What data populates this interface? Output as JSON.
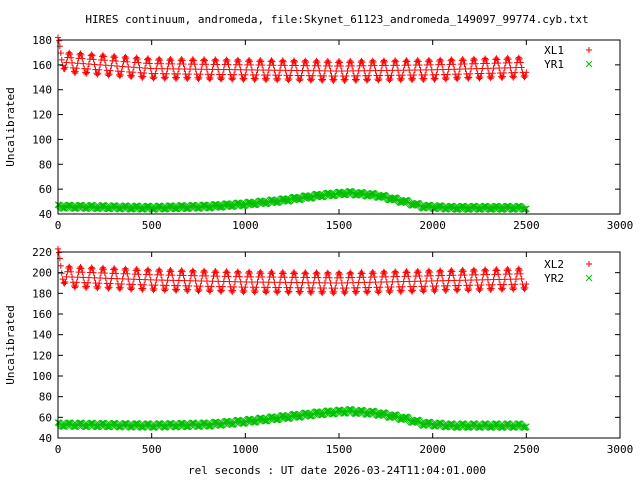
{
  "title": "HIRES continuum, andromeda, file:Skynet_61123_andromeda_149097_99774.cyb.txt",
  "xlabel": "rel seconds : UT date 2026-03-24T11:04:01.000",
  "chart_data": [
    {
      "type": "scatter",
      "ylabel": "Uncalibrated",
      "xlim": [
        0,
        3000
      ],
      "ylim": [
        40,
        180
      ],
      "xticks": [
        0,
        500,
        1000,
        1500,
        2000,
        2500,
        3000
      ],
      "yticks": [
        40,
        60,
        80,
        100,
        120,
        140,
        160,
        180
      ],
      "legend": "top-right",
      "grid": false,
      "series": [
        {
          "name": "XL1",
          "marker": "plus",
          "color": "#ff0000",
          "x_range": [
            0,
            2500
          ],
          "step": 5,
          "keypoints": [
            [
              0,
              176
            ],
            [
              40,
              164
            ],
            [
              500,
              159
            ],
            [
              1000,
              158
            ],
            [
              1500,
              157
            ],
            [
              2000,
              158
            ],
            [
              2500,
              160
            ]
          ],
          "oscillation": {
            "period": 60,
            "low": -10,
            "high": 6
          }
        },
        {
          "name": "YR1",
          "marker": "cross",
          "color": "#00c000",
          "x_range": [
            0,
            2500
          ],
          "step": 5,
          "keypoints": [
            [
              0,
              46
            ],
            [
              500,
              45
            ],
            [
              800,
              46
            ],
            [
              1000,
              48
            ],
            [
              1200,
              51
            ],
            [
              1400,
              55
            ],
            [
              1550,
              57
            ],
            [
              1700,
              55
            ],
            [
              1850,
              50
            ],
            [
              1950,
              46
            ],
            [
              2100,
              45
            ],
            [
              2500,
              45
            ]
          ],
          "oscillation": {
            "period": 60,
            "low": -1.5,
            "high": 1.5
          }
        }
      ]
    },
    {
      "type": "scatter",
      "ylabel": "Uncalibrated",
      "xlim": [
        0,
        3000
      ],
      "ylim": [
        40,
        220
      ],
      "xticks": [
        0,
        500,
        1000,
        1500,
        2000,
        2500,
        3000
      ],
      "yticks": [
        40,
        60,
        80,
        100,
        120,
        140,
        160,
        180,
        200,
        220
      ],
      "legend": "top-right",
      "grid": false,
      "series": [
        {
          "name": "XL2",
          "marker": "plus",
          "color": "#ff0000",
          "x_range": [
            0,
            2500
          ],
          "step": 5,
          "keypoints": [
            [
              0,
              215
            ],
            [
              40,
              198
            ],
            [
              500,
              195
            ],
            [
              1000,
              193
            ],
            [
              1500,
              192
            ],
            [
              2000,
              194
            ],
            [
              2500,
              196
            ]
          ],
          "oscillation": {
            "period": 60,
            "low": -12,
            "high": 8
          }
        },
        {
          "name": "YR2",
          "marker": "cross",
          "color": "#00c000",
          "x_range": [
            0,
            2500
          ],
          "step": 5,
          "keypoints": [
            [
              0,
              53
            ],
            [
              500,
              52
            ],
            [
              800,
              53
            ],
            [
              1000,
              56
            ],
            [
              1200,
              60
            ],
            [
              1400,
              64
            ],
            [
              1550,
              66
            ],
            [
              1700,
              64
            ],
            [
              1850,
              59
            ],
            [
              1950,
              54
            ],
            [
              2100,
              52
            ],
            [
              2500,
              52
            ]
          ],
          "oscillation": {
            "period": 60,
            "low": -2,
            "high": 2
          }
        }
      ]
    }
  ]
}
